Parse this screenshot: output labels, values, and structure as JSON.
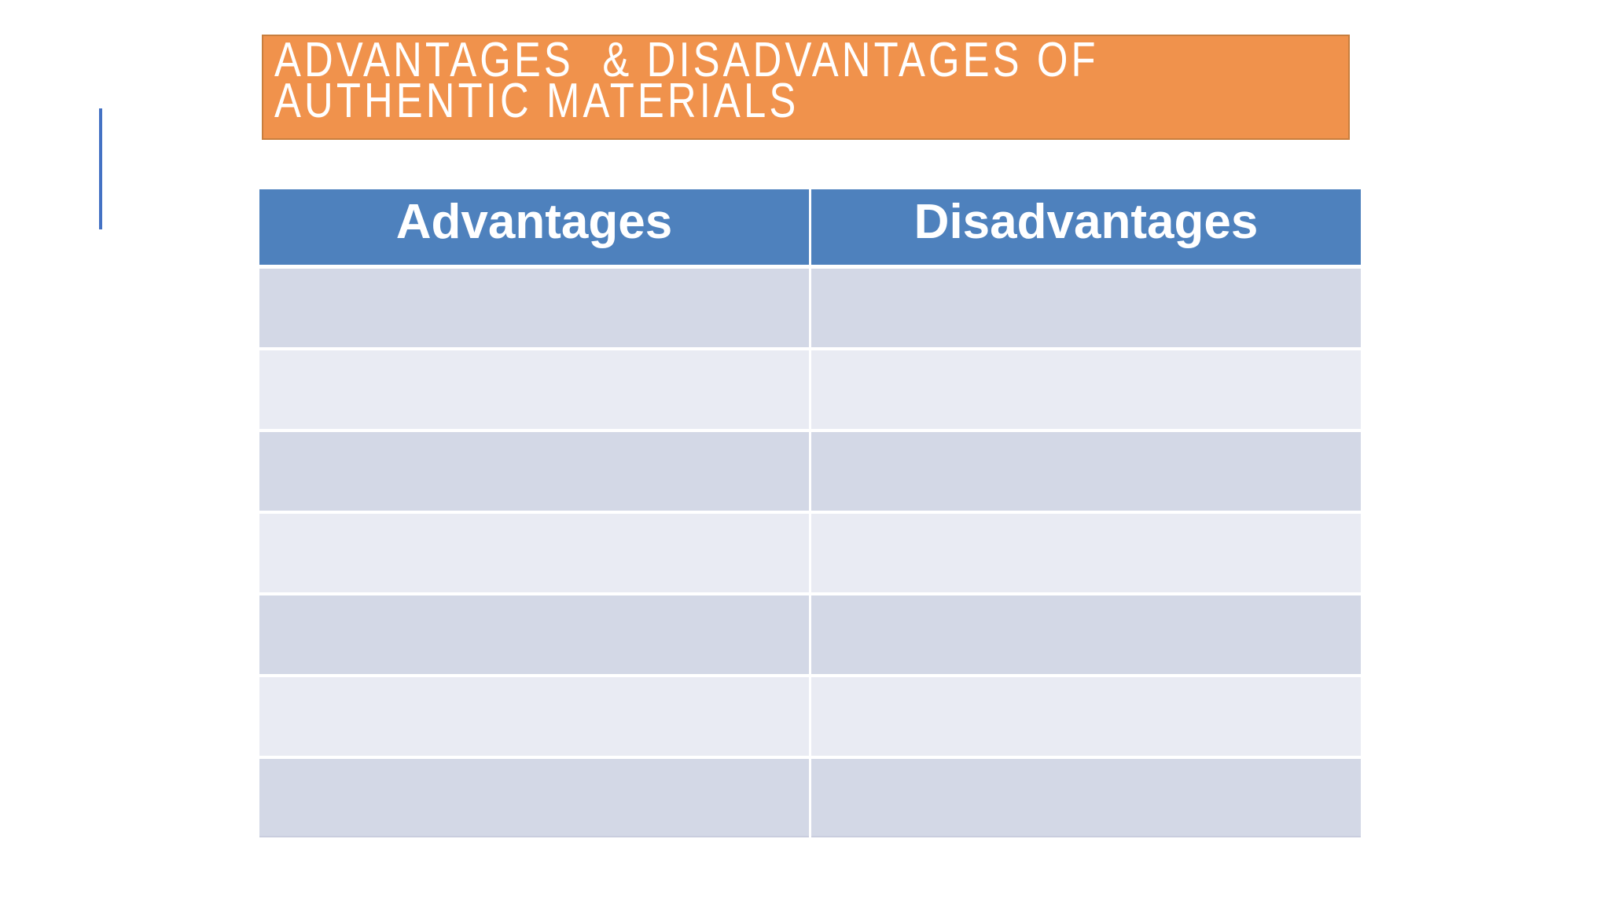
{
  "slide": {
    "title": {
      "line1": "ADVANTAGES  & DISADVANTAGES OF",
      "line2": "AUTHENTIC MATERIALS"
    },
    "table": {
      "headers": [
        "Advantages",
        "Disadvantages"
      ],
      "rows": [
        [
          "",
          ""
        ],
        [
          "",
          ""
        ],
        [
          "",
          ""
        ],
        [
          "",
          ""
        ],
        [
          "",
          ""
        ],
        [
          "",
          ""
        ],
        [
          "",
          ""
        ]
      ]
    },
    "colors": {
      "banner_fill": "#F0924C",
      "banner_border": "#C87E3E",
      "header_fill": "#4E81BD",
      "row_dark": "#D3D8E6",
      "row_light": "#E9EBF3",
      "accent_line": "#4472C4",
      "text_white": "#FFFFFF",
      "background": "#FFFFFF"
    }
  }
}
